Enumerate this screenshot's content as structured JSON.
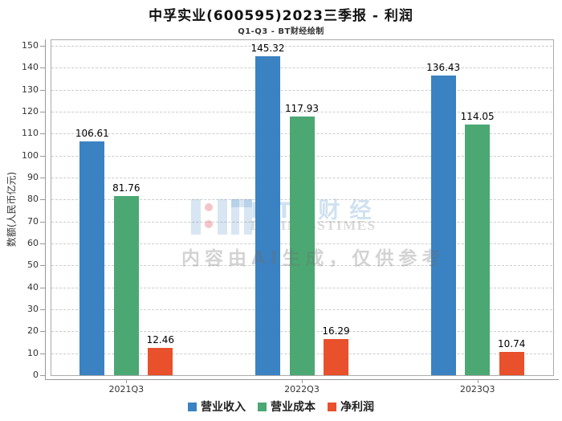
{
  "chart_data": {
    "type": "bar",
    "title": "中孚实业(600595)2023三季报 - 利润",
    "subtitle": "Q1-Q3 - BT财经绘制",
    "categories": [
      "2021Q3",
      "2022Q3",
      "2023Q3"
    ],
    "series": [
      {
        "name": "营业收入",
        "color": "#3a82c2",
        "values": [
          106.61,
          145.32,
          136.43
        ]
      },
      {
        "name": "营业成本",
        "color": "#4ba873",
        "values": [
          81.76,
          117.93,
          114.05
        ]
      },
      {
        "name": "净利润",
        "color": "#e8512b",
        "values": [
          12.46,
          16.29,
          10.74
        ]
      }
    ],
    "xlabel": "",
    "ylabel": "数额(人民币亿元)",
    "ylim": [
      0,
      150
    ],
    "ytick_step": 10,
    "grid": "horizontal-dashed",
    "legend_position": "bottom",
    "bar_value_labels": true
  },
  "watermark": {
    "brand_cn": "BT 财经",
    "brand_en": "BUSINESSTIMES",
    "notice": "内容由AI生成，仅供参考"
  }
}
